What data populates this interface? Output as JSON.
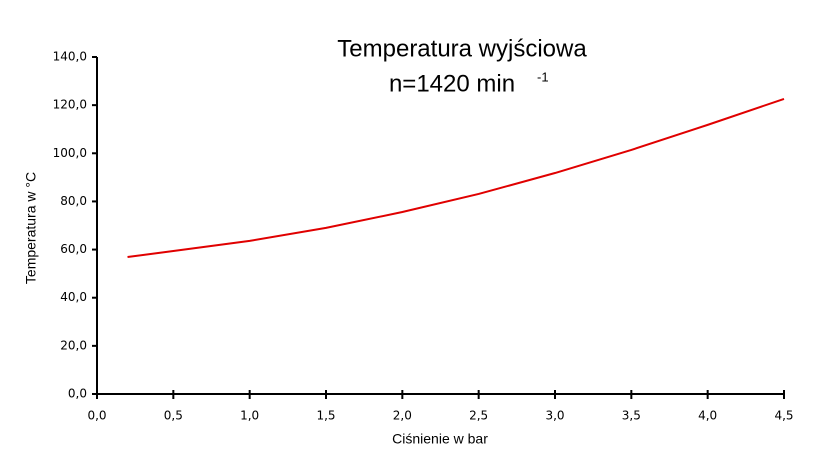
{
  "chart_data": {
    "type": "line",
    "title": "Temperatura wyjściowa",
    "subtitle": "n=1420 min",
    "subtitle_superscript": "-1",
    "x_label": "Ciśnienie w bar",
    "y_label": "Temperatura w °C",
    "x": [
      0.2,
      0.5,
      1.0,
      1.5,
      2.0,
      2.5,
      3.0,
      3.5,
      4.0,
      4.5
    ],
    "series": [
      {
        "name": "Temperatura",
        "color": "#e00000",
        "values": [
          56.9,
          59.4,
          63.6,
          69.0,
          75.6,
          83.1,
          91.8,
          101.4,
          111.8,
          122.6
        ]
      }
    ],
    "xlim": [
      0,
      4.5
    ],
    "xticks": [
      {
        "value": 0,
        "label": "0,0"
      },
      {
        "value": 0.5,
        "label": "0,5"
      },
      {
        "value": 1,
        "label": "1,0"
      },
      {
        "value": 1.5,
        "label": "1,5"
      },
      {
        "value": 2,
        "label": "2,0"
      },
      {
        "value": 2.5,
        "label": "2,5"
      },
      {
        "value": 3,
        "label": "3,0"
      },
      {
        "value": 3.5,
        "label": "3,5"
      },
      {
        "value": 4,
        "label": "4,0"
      },
      {
        "value": 4.5,
        "label": "4,5"
      }
    ],
    "ylim": [
      0,
      140
    ],
    "yticks": [
      {
        "value": 0,
        "label": "0,0"
      },
      {
        "value": 20,
        "label": "20,0"
      },
      {
        "value": 40,
        "label": "40,0"
      },
      {
        "value": 60,
        "label": "60,0"
      },
      {
        "value": 80,
        "label": "80,0"
      },
      {
        "value": 100,
        "label": "100,0"
      },
      {
        "value": 120,
        "label": "120,0"
      },
      {
        "value": 140,
        "label": "140,0"
      }
    ],
    "grid": false
  }
}
